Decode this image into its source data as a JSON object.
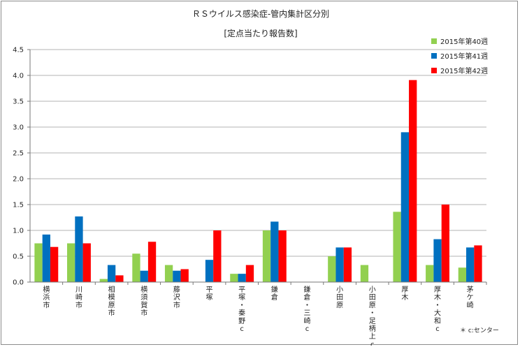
{
  "chart_data": {
    "type": "bar",
    "title": "ＲＳウイルス感染症-管内集計区分別",
    "subtitle": "[定点当たり報告数]",
    "ylim": [
      0,
      4.5
    ],
    "yticks": [
      "0.0",
      "0.5",
      "1.0",
      "1.5",
      "2.0",
      "2.5",
      "3.0",
      "3.5",
      "4.0",
      "4.5"
    ],
    "categories": [
      "横浜市",
      "川崎市",
      "相模原市",
      "横須賀市",
      "藤沢市",
      "平塚",
      "平塚・秦野c",
      "鎌倉",
      "鎌倉・三崎c",
      "小田原",
      "小田原・足柄上c",
      "厚木",
      "厚木・大和c",
      "茅ケ崎"
    ],
    "series": [
      {
        "name": "2015年第40週",
        "color": "#92d050",
        "values": [
          0.75,
          0.75,
          0.06,
          0.55,
          0.33,
          0,
          0.16,
          1.0,
          0,
          0.5,
          0.33,
          1.36,
          0.33,
          0.28
        ]
      },
      {
        "name": "2015年第41週",
        "color": "#0070c0",
        "values": [
          0.92,
          1.27,
          0.33,
          0.22,
          0.22,
          0.43,
          0.16,
          1.17,
          0,
          0.67,
          0,
          2.9,
          0.83,
          0.67
        ]
      },
      {
        "name": "2015年第42週",
        "color": "#ff0000",
        "values": [
          0.68,
          0.75,
          0.13,
          0.78,
          0.25,
          1.0,
          0.33,
          1.0,
          0,
          0.67,
          0,
          3.91,
          1.5,
          0.71
        ]
      }
    ],
    "legend_position": "top-right",
    "grid": true
  },
  "footnote": "＊ c:センター"
}
